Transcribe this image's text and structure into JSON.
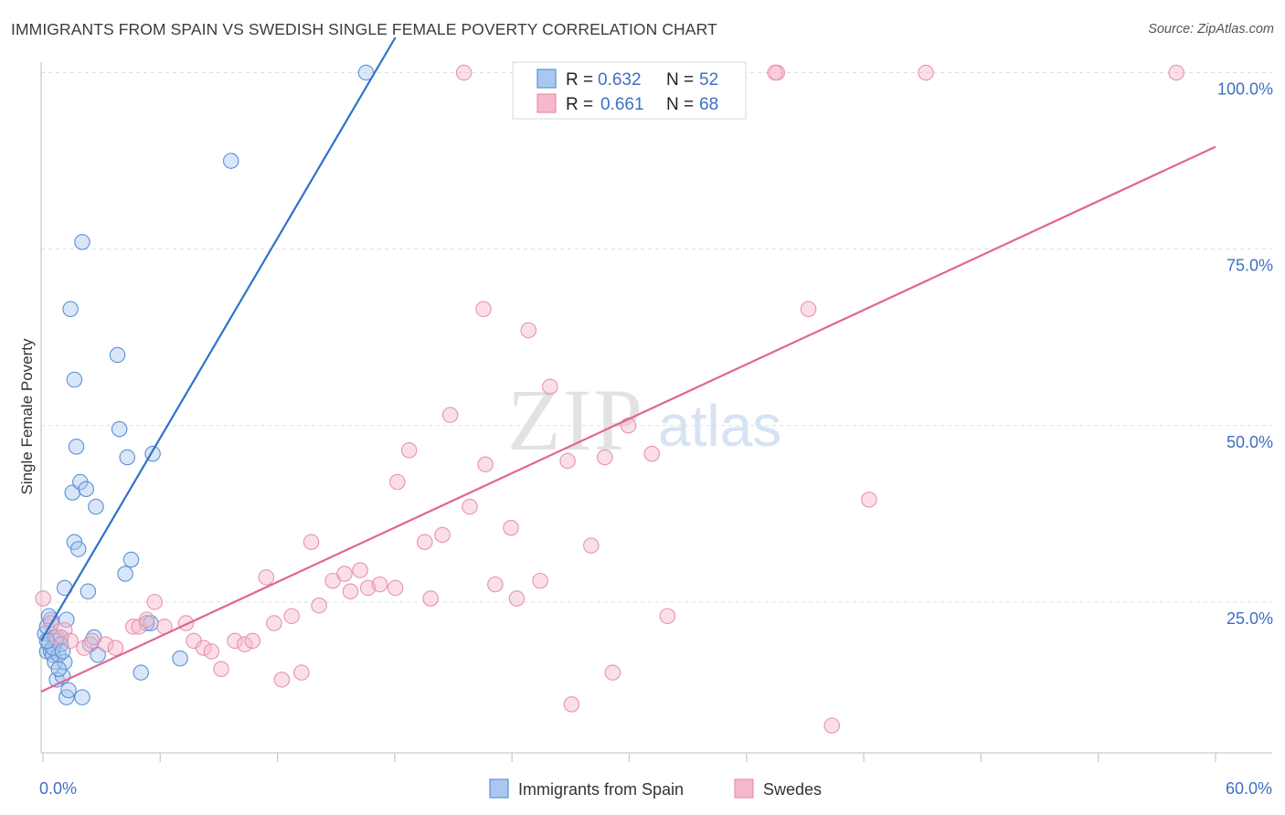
{
  "title": "IMMIGRANTS FROM SPAIN VS SWEDISH SINGLE FEMALE POVERTY CORRELATION CHART",
  "source": "Source: ZipAtlas.com",
  "watermark": {
    "zip": "ZIP",
    "atlas": "atlas"
  },
  "colors": {
    "blue_fill": "#a9c8f0",
    "blue_stroke": "#5b8fd6",
    "blue_line": "#2f72c9",
    "pink_fill": "#f6b8cb",
    "pink_stroke": "#e891ad",
    "pink_line": "#e0668f",
    "tick_text": "#3d6fc4"
  },
  "stats_legend": [
    {
      "r_label": "R =",
      "r_value": "0.632",
      "n_label": "N =",
      "n_value": "52"
    },
    {
      "r_label": "R =",
      "r_value": "0.661",
      "n_label": "N =",
      "n_value": "68"
    }
  ],
  "chart_data": {
    "type": "scatter",
    "title": "IMMIGRANTS FROM SPAIN VS SWEDISH SINGLE FEMALE POVERTY CORRELATION CHART",
    "xlabel": "",
    "ylabel": "Single Female Poverty",
    "xlim": [
      0,
      60
    ],
    "ylim": [
      0,
      105
    ],
    "x_tick_labels": [
      "0.0%",
      "60.0%"
    ],
    "y_ticks": [
      25,
      50,
      75,
      100
    ],
    "y_tick_labels": [
      "25.0%",
      "50.0%",
      "75.0%",
      "100.0%"
    ],
    "grid": true,
    "legend_position": "bottom",
    "series": [
      {
        "name": "Immigrants from Spain",
        "color": "#a9c8f0",
        "trend": {
          "x": [
            0.0,
            18.1
          ],
          "y": [
            19.5,
            105.0
          ]
        },
        "points": [
          [
            0.2,
            20.5
          ],
          [
            0.3,
            18.0
          ],
          [
            0.3,
            21.5
          ],
          [
            0.4,
            19.0
          ],
          [
            0.5,
            22.5
          ],
          [
            0.5,
            18.0
          ],
          [
            0.6,
            17.5
          ],
          [
            0.7,
            16.5
          ],
          [
            0.7,
            20.0
          ],
          [
            0.8,
            19.5
          ],
          [
            0.8,
            14.0
          ],
          [
            0.9,
            17.5
          ],
          [
            1.0,
            20.0
          ],
          [
            1.0,
            19.0
          ],
          [
            1.1,
            14.5
          ],
          [
            1.2,
            16.5
          ],
          [
            1.2,
            27.0
          ],
          [
            1.3,
            22.5
          ],
          [
            1.3,
            11.5
          ],
          [
            1.4,
            12.5
          ],
          [
            1.5,
            66.5
          ],
          [
            1.6,
            40.5
          ],
          [
            1.7,
            33.5
          ],
          [
            1.7,
            56.5
          ],
          [
            1.8,
            47.0
          ],
          [
            1.9,
            32.5
          ],
          [
            2.0,
            42.0
          ],
          [
            2.1,
            11.5
          ],
          [
            2.1,
            76.0
          ],
          [
            2.3,
            41.0
          ],
          [
            2.4,
            26.5
          ],
          [
            2.5,
            19.0
          ],
          [
            2.7,
            20.0
          ],
          [
            2.8,
            38.5
          ],
          [
            2.9,
            17.5
          ],
          [
            3.9,
            60.0
          ],
          [
            4.0,
            49.5
          ],
          [
            4.3,
            29.0
          ],
          [
            4.4,
            45.5
          ],
          [
            4.6,
            31.0
          ],
          [
            5.1,
            15.0
          ],
          [
            5.4,
            22.0
          ],
          [
            5.6,
            22.0
          ],
          [
            5.7,
            46.0
          ],
          [
            7.1,
            17.0
          ],
          [
            9.7,
            87.5
          ],
          [
            16.6,
            100.0
          ],
          [
            0.4,
            23.0
          ],
          [
            0.6,
            18.5
          ],
          [
            0.9,
            15.5
          ],
          [
            1.1,
            18.0
          ],
          [
            0.3,
            19.5
          ]
        ]
      },
      {
        "name": "Swedes",
        "color": "#f6b8cb",
        "trend": {
          "x": [
            0.0,
            60.0
          ],
          "y": [
            12.3,
            89.5
          ]
        },
        "points": [
          [
            0.1,
            25.5
          ],
          [
            0.5,
            22.0
          ],
          [
            0.8,
            20.0
          ],
          [
            1.2,
            21.0
          ],
          [
            1.5,
            19.5
          ],
          [
            2.2,
            18.5
          ],
          [
            2.6,
            19.5
          ],
          [
            3.3,
            19.0
          ],
          [
            3.8,
            18.5
          ],
          [
            4.7,
            21.5
          ],
          [
            5.0,
            21.5
          ],
          [
            5.4,
            22.5
          ],
          [
            5.8,
            25.0
          ],
          [
            6.3,
            21.5
          ],
          [
            7.4,
            22.0
          ],
          [
            7.8,
            19.5
          ],
          [
            8.3,
            18.5
          ],
          [
            8.7,
            18.0
          ],
          [
            9.2,
            15.5
          ],
          [
            9.9,
            19.5
          ],
          [
            10.4,
            19.0
          ],
          [
            10.8,
            19.5
          ],
          [
            11.5,
            28.5
          ],
          [
            11.9,
            22.0
          ],
          [
            12.3,
            14.0
          ],
          [
            12.8,
            23.0
          ],
          [
            13.3,
            15.0
          ],
          [
            13.8,
            33.5
          ],
          [
            14.2,
            24.5
          ],
          [
            14.9,
            28.0
          ],
          [
            15.5,
            29.0
          ],
          [
            15.8,
            26.5
          ],
          [
            16.3,
            29.5
          ],
          [
            16.7,
            27.0
          ],
          [
            17.3,
            27.5
          ],
          [
            18.1,
            27.0
          ],
          [
            18.2,
            42.0
          ],
          [
            18.8,
            46.5
          ],
          [
            19.6,
            33.5
          ],
          [
            19.9,
            25.5
          ],
          [
            20.5,
            34.5
          ],
          [
            20.9,
            51.5
          ],
          [
            21.9,
            38.5
          ],
          [
            22.6,
            66.5
          ],
          [
            22.7,
            44.5
          ],
          [
            23.2,
            27.5
          ],
          [
            24.0,
            35.5
          ],
          [
            24.3,
            25.5
          ],
          [
            24.9,
            63.5
          ],
          [
            25.5,
            28.0
          ],
          [
            26.0,
            55.5
          ],
          [
            26.9,
            45.0
          ],
          [
            28.1,
            33.0
          ],
          [
            28.8,
            45.5
          ],
          [
            29.2,
            15.0
          ],
          [
            30.0,
            50.0
          ],
          [
            31.2,
            46.0
          ],
          [
            32.0,
            23.0
          ],
          [
            37.6,
            100.0
          ],
          [
            39.2,
            66.5
          ],
          [
            40.4,
            7.5
          ],
          [
            42.3,
            39.5
          ],
          [
            45.2,
            100.0
          ],
          [
            58.0,
            100.0
          ],
          [
            21.6,
            100.0
          ],
          [
            37.5,
            100.0
          ],
          [
            27.1,
            10.5
          ],
          [
            31.0,
            100.0
          ]
        ]
      }
    ]
  }
}
